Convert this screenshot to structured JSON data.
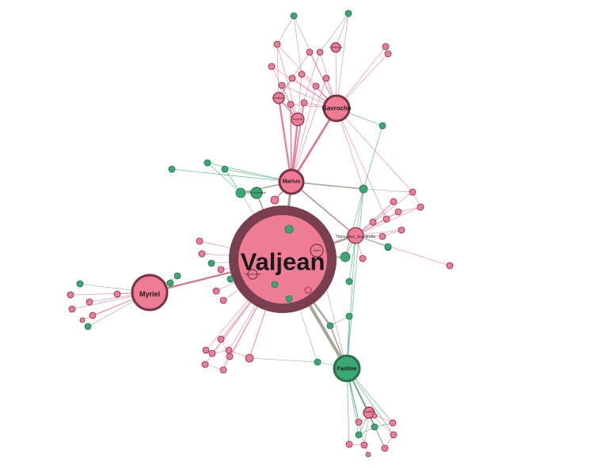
{
  "colors": {
    "pink": "#ef7c95",
    "pink_stroke": "#7a3344",
    "green": "#39a873",
    "green_stroke": "#2a6e4a",
    "edge_pink": "#e16b8a",
    "edge_green": "#2a9c66",
    "edge_gray": "#9a9486",
    "hub_ring": "#7a3f4f"
  },
  "labels": {
    "valjean": "Valjean",
    "myriel": "Myriel",
    "marius": "Marius",
    "gavroche": "Gavroche",
    "fantine": "Fantine",
    "thenardier": "Thenardier_Jeandrette",
    "mlle_baptistine": "Mlle_Baptistine",
    "javert": "Javert",
    "fauchelevent": "Fauchelevent",
    "cosette": "Cosette",
    "enjolras": "Enjolras",
    "courfeyrac": "Courfeyrac",
    "tholomyes": "Tholomyes"
  }
}
